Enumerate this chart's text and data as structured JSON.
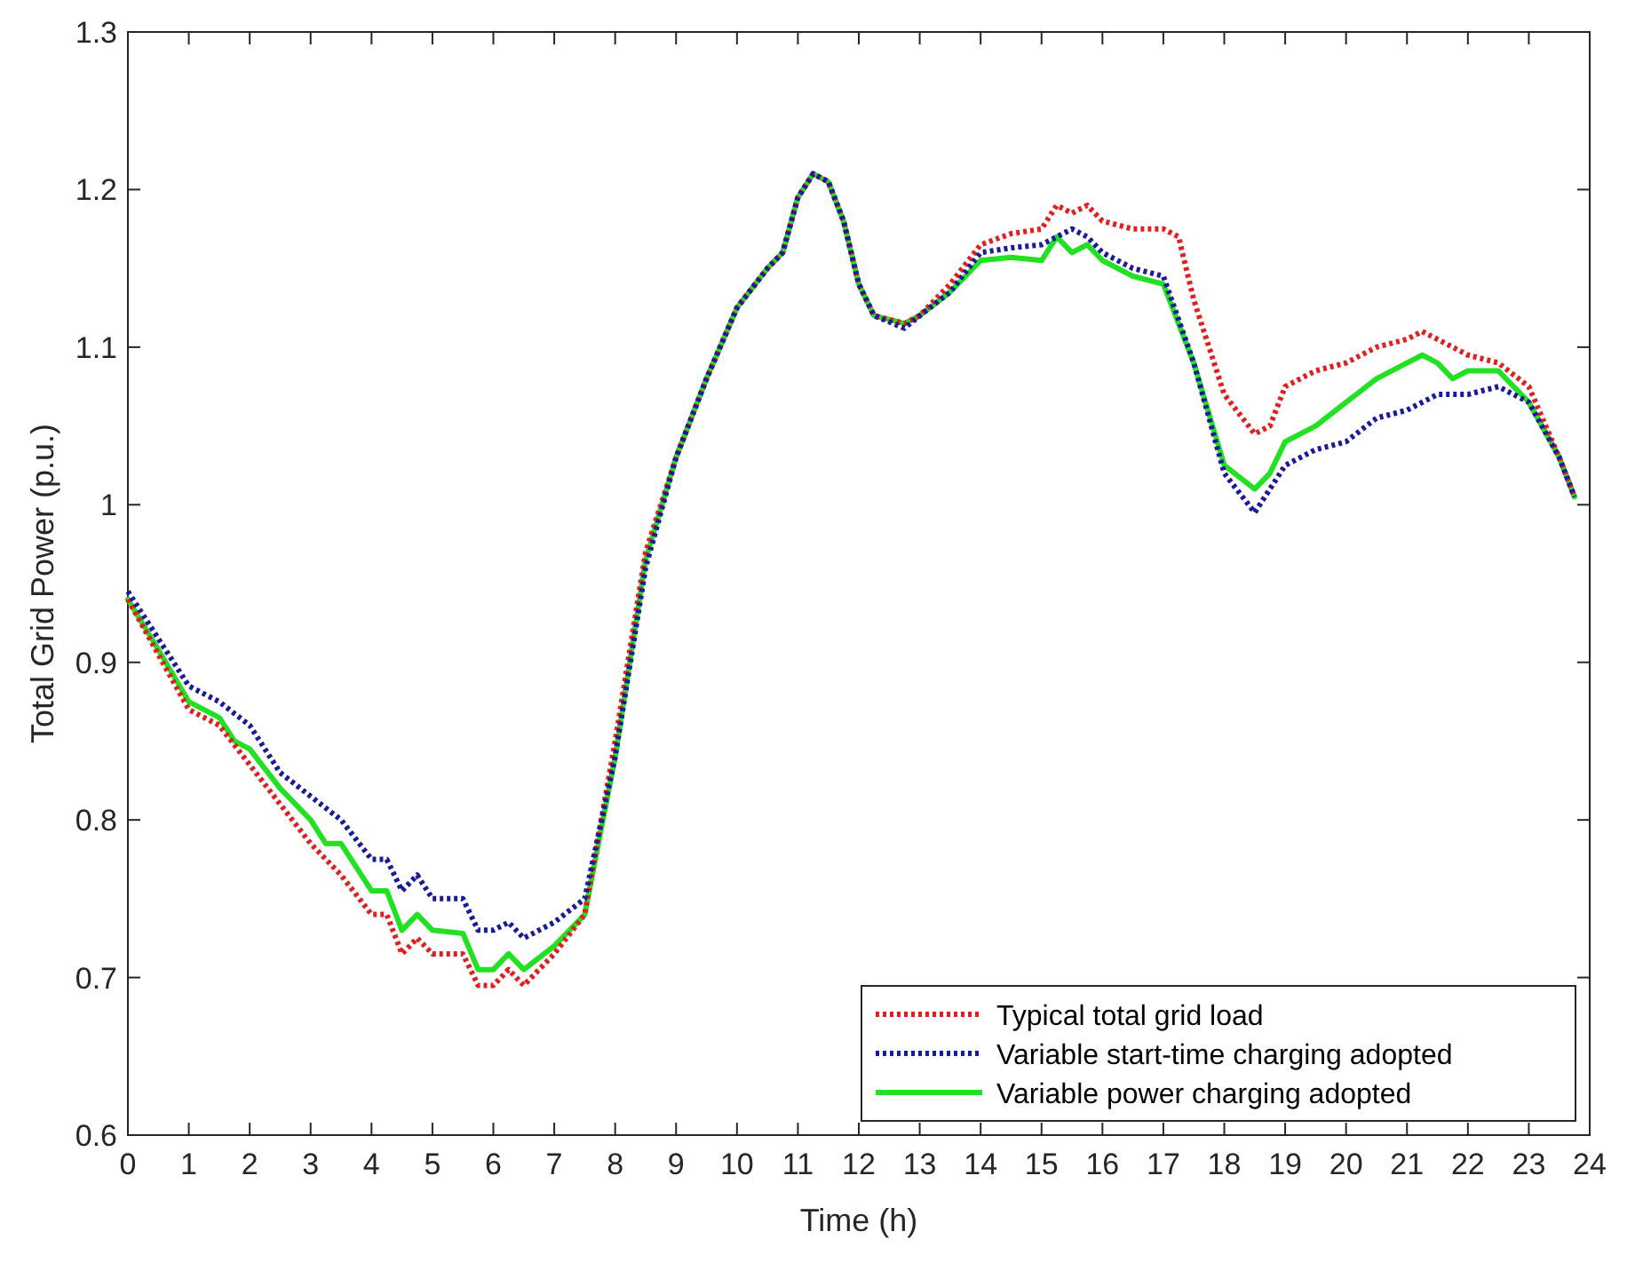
{
  "chart_data": {
    "type": "line",
    "xlabel": "Time (h)",
    "ylabel": "Total Grid Power (p.u.)",
    "xlim": [
      0,
      24
    ],
    "xticks": [
      0,
      1,
      2,
      3,
      4,
      5,
      6,
      7,
      8,
      9,
      10,
      11,
      12,
      13,
      14,
      15,
      16,
      17,
      18,
      19,
      20,
      21,
      22,
      23,
      24
    ],
    "ylim": [
      0.6,
      1.3
    ],
    "yticks": [
      0.6,
      0.7,
      0.8,
      0.9,
      1,
      1.1,
      1.2,
      1.3
    ],
    "grid": false,
    "legend": "bottom right",
    "marker": "none",
    "series": [
      {
        "name": "Typical total grid load",
        "color": "#e02020",
        "line_style": "dotted",
        "x": [
          0,
          0.5,
          1,
          1.5,
          2,
          2.5,
          3,
          3.5,
          4,
          4.25,
          4.5,
          4.75,
          5,
          5.5,
          5.75,
          6,
          6.25,
          6.5,
          7,
          7.5,
          8,
          8.5,
          9,
          9.5,
          10,
          10.5,
          10.75,
          11,
          11.25,
          11.5,
          11.75,
          12,
          12.25,
          12.75,
          13,
          13.5,
          14,
          14.5,
          15,
          15.25,
          15.5,
          15.75,
          16,
          16.5,
          17,
          17.25,
          17.5,
          18,
          18.5,
          18.75,
          19,
          19.5,
          20,
          20.5,
          21,
          21.25,
          21.5,
          22,
          22.5,
          23,
          23.5,
          23.75
        ],
        "values": [
          0.94,
          0.905,
          0.87,
          0.86,
          0.835,
          0.81,
          0.785,
          0.765,
          0.74,
          0.74,
          0.715,
          0.725,
          0.715,
          0.715,
          0.695,
          0.695,
          0.705,
          0.695,
          0.715,
          0.74,
          0.85,
          0.97,
          1.03,
          1.08,
          1.125,
          1.15,
          1.16,
          1.195,
          1.21,
          1.205,
          1.18,
          1.14,
          1.12,
          1.115,
          1.12,
          1.14,
          1.165,
          1.172,
          1.175,
          1.19,
          1.185,
          1.19,
          1.18,
          1.175,
          1.175,
          1.17,
          1.13,
          1.07,
          1.045,
          1.05,
          1.075,
          1.085,
          1.09,
          1.1,
          1.105,
          1.11,
          1.105,
          1.095,
          1.09,
          1.075,
          1.03,
          1.005
        ]
      },
      {
        "name": "Variable start-time charging adopted",
        "color": "#1a1a9a",
        "line_style": "dotted",
        "x": [
          0,
          0.5,
          1,
          1.5,
          2,
          2.5,
          3,
          3.5,
          4,
          4.25,
          4.5,
          4.75,
          5,
          5.5,
          5.75,
          6,
          6.25,
          6.5,
          7,
          7.5,
          8,
          8.5,
          9,
          9.5,
          10,
          10.5,
          10.75,
          11,
          11.25,
          11.5,
          11.75,
          12,
          12.25,
          12.75,
          13,
          13.5,
          14,
          14.5,
          15,
          15.25,
          15.5,
          15.75,
          16,
          16.5,
          17,
          17.5,
          18,
          18.5,
          18.75,
          19,
          19.5,
          20,
          20.5,
          21,
          21.5,
          22,
          22.5,
          23,
          23.5,
          23.75
        ],
        "values": [
          0.945,
          0.915,
          0.885,
          0.875,
          0.86,
          0.83,
          0.815,
          0.8,
          0.775,
          0.775,
          0.755,
          0.765,
          0.75,
          0.75,
          0.73,
          0.73,
          0.735,
          0.725,
          0.735,
          0.75,
          0.84,
          0.96,
          1.03,
          1.08,
          1.125,
          1.15,
          1.16,
          1.195,
          1.21,
          1.205,
          1.18,
          1.14,
          1.12,
          1.112,
          1.12,
          1.135,
          1.16,
          1.163,
          1.165,
          1.17,
          1.175,
          1.17,
          1.16,
          1.15,
          1.145,
          1.09,
          1.02,
          0.995,
          1.01,
          1.025,
          1.035,
          1.04,
          1.055,
          1.06,
          1.07,
          1.07,
          1.075,
          1.065,
          1.03,
          1.005
        ]
      },
      {
        "name": "Variable power charging adopted",
        "color": "#22e022",
        "line_style": "solid",
        "x": [
          0,
          0.5,
          1,
          1.5,
          1.75,
          2,
          2.5,
          3,
          3.25,
          3.5,
          4,
          4.25,
          4.5,
          4.75,
          5,
          5.5,
          5.75,
          6,
          6.25,
          6.5,
          7,
          7.5,
          8,
          8.5,
          9,
          9.5,
          10,
          10.5,
          10.75,
          11,
          11.25,
          11.5,
          11.75,
          12,
          12.25,
          12.75,
          13,
          13.5,
          14,
          14.5,
          15,
          15.25,
          15.5,
          15.75,
          16,
          16.5,
          17,
          17.5,
          18,
          18.5,
          18.75,
          19,
          19.5,
          20,
          20.5,
          21,
          21.25,
          21.5,
          21.75,
          22,
          22.5,
          23,
          23.5,
          23.75
        ],
        "values": [
          0.94,
          0.908,
          0.875,
          0.865,
          0.85,
          0.845,
          0.82,
          0.8,
          0.785,
          0.785,
          0.755,
          0.755,
          0.73,
          0.74,
          0.73,
          0.728,
          0.705,
          0.705,
          0.715,
          0.705,
          0.72,
          0.74,
          0.84,
          0.965,
          1.03,
          1.08,
          1.125,
          1.15,
          1.16,
          1.195,
          1.21,
          1.205,
          1.18,
          1.14,
          1.12,
          1.115,
          1.12,
          1.135,
          1.155,
          1.157,
          1.155,
          1.17,
          1.16,
          1.165,
          1.155,
          1.145,
          1.14,
          1.09,
          1.025,
          1.01,
          1.02,
          1.04,
          1.05,
          1.065,
          1.08,
          1.09,
          1.095,
          1.09,
          1.08,
          1.085,
          1.085,
          1.065,
          1.03,
          1.005
        ]
      }
    ]
  }
}
